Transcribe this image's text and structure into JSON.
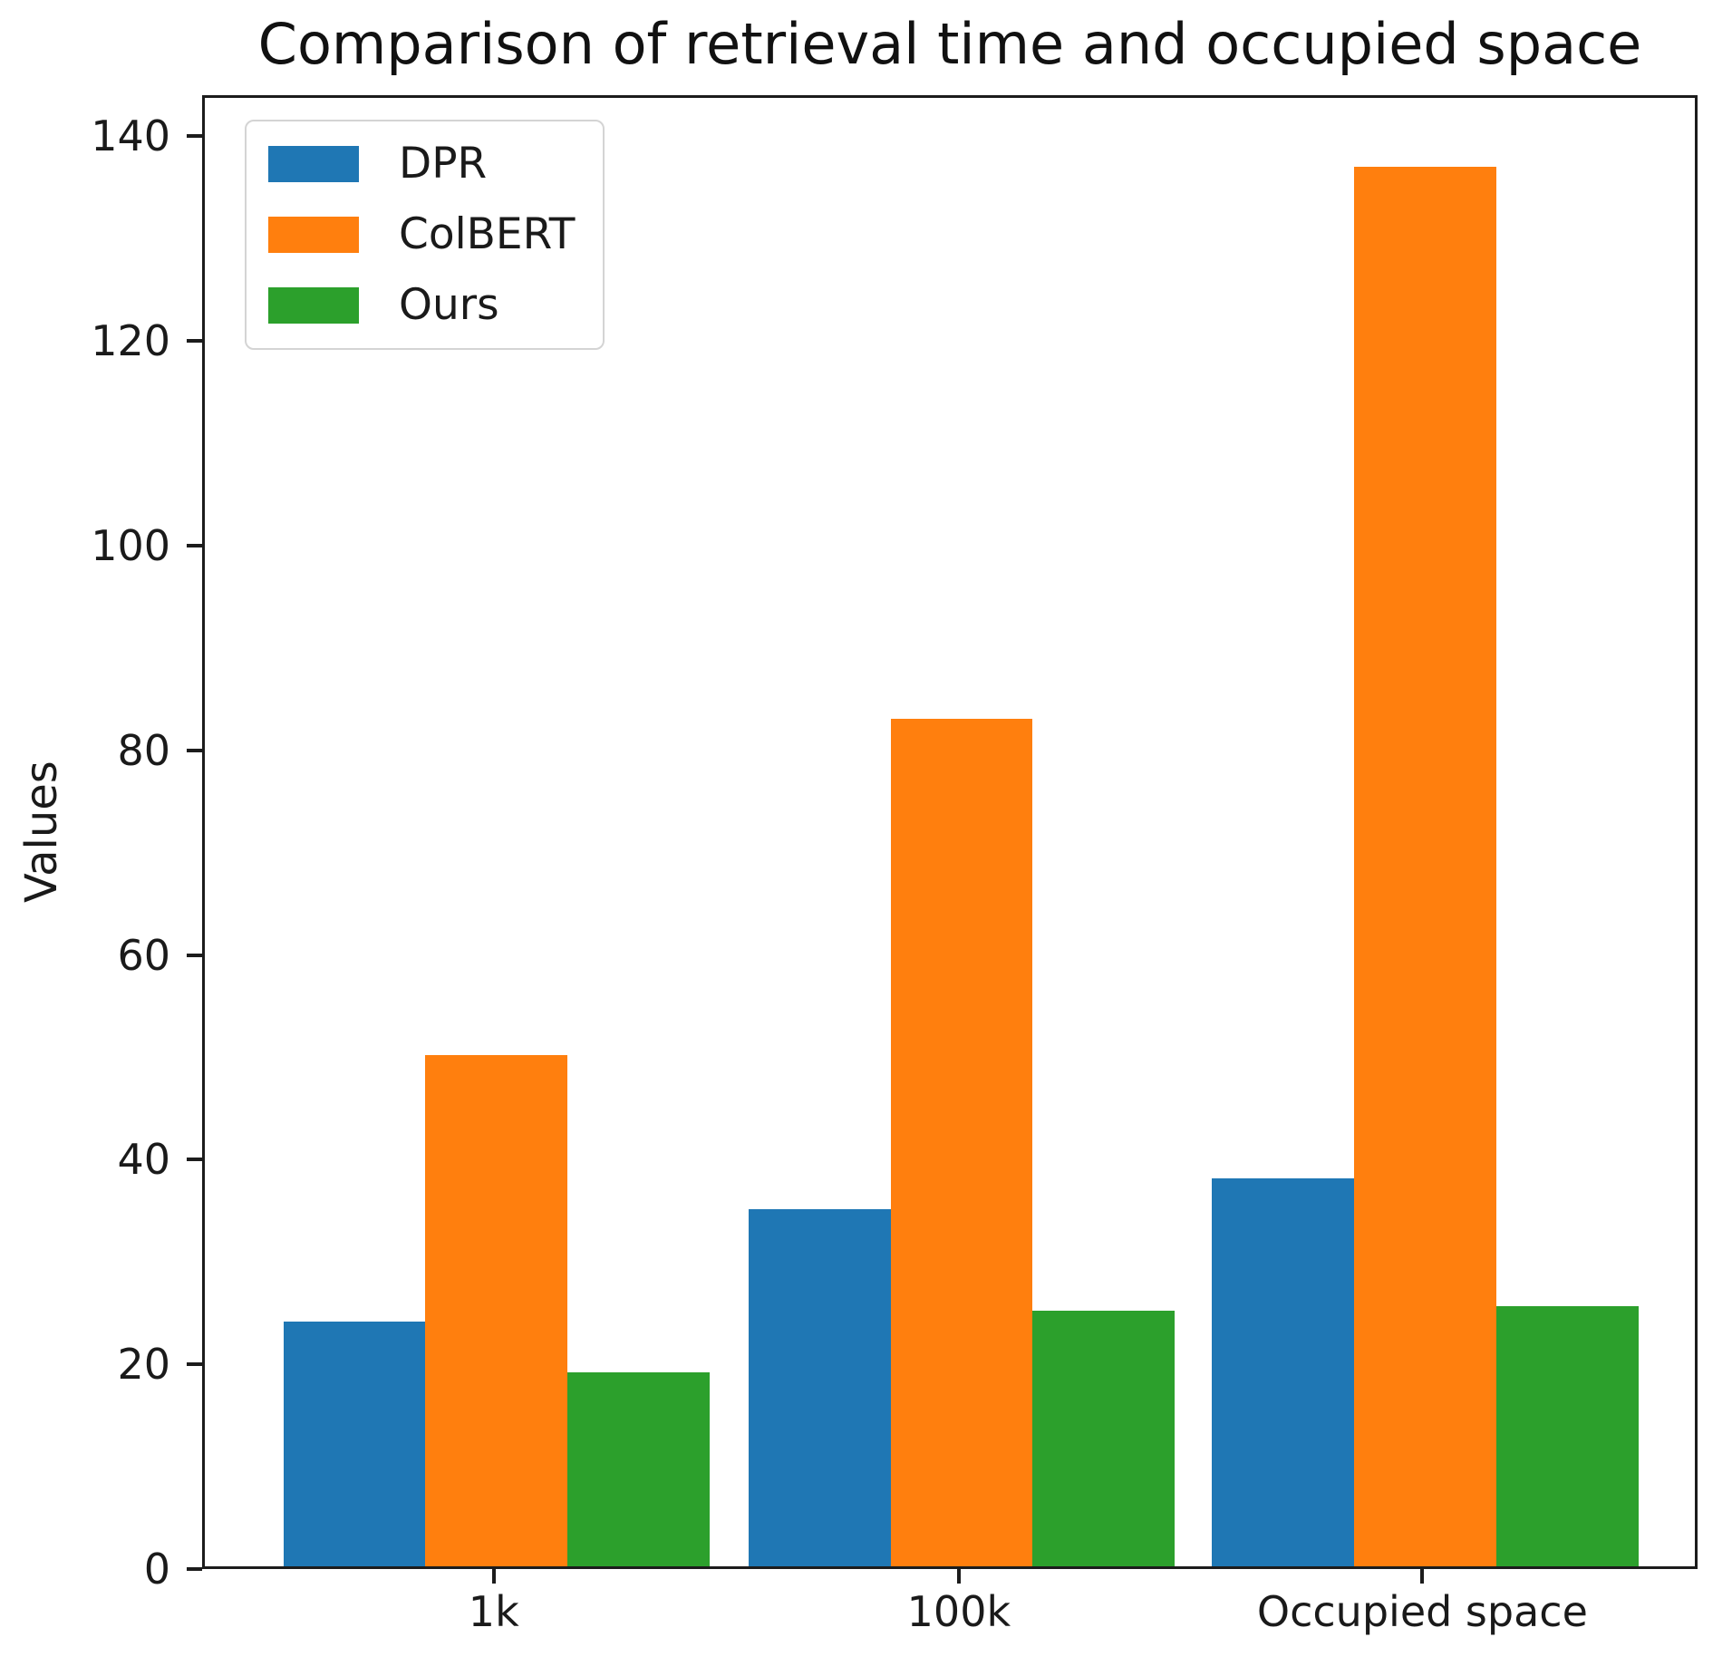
{
  "title": "Comparison of retrieval time and occupied space",
  "chart_data": {
    "type": "bar",
    "title": "Comparison of retrieval time and occupied space",
    "xlabel": "",
    "ylabel": "Values",
    "categories": [
      "1k",
      "100k",
      "Occupied space"
    ],
    "series": [
      {
        "name": "DPR",
        "color": "#1f77b4",
        "values": [
          24,
          35,
          38
        ]
      },
      {
        "name": "ColBERT",
        "color": "#ff7f0e",
        "values": [
          50,
          83,
          137
        ]
      },
      {
        "name": "Ours",
        "color": "#2ca02c",
        "values": [
          19,
          25,
          25.5
        ]
      }
    ],
    "yticks": [
      0,
      20,
      40,
      60,
      80,
      100,
      120,
      140
    ],
    "ylim": [
      0,
      144
    ],
    "grid": false,
    "legend_position": "upper left",
    "spine_color": "#1c1c1c",
    "background": "#ffffff"
  }
}
